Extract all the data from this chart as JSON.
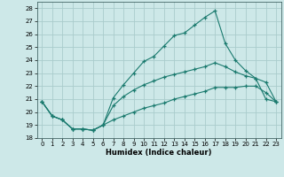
{
  "xlabel": "Humidex (Indice chaleur)",
  "xlim": [
    -0.5,
    23.5
  ],
  "ylim": [
    18,
    28.5
  ],
  "yticks": [
    18,
    19,
    20,
    21,
    22,
    23,
    24,
    25,
    26,
    27,
    28
  ],
  "xticks": [
    0,
    1,
    2,
    3,
    4,
    5,
    6,
    7,
    8,
    9,
    10,
    11,
    12,
    13,
    14,
    15,
    16,
    17,
    18,
    19,
    20,
    21,
    22,
    23
  ],
  "background_color": "#cde8e8",
  "grid_color": "#aacccc",
  "line_color": "#1a7a6e",
  "series": [
    {
      "x": [
        0,
        1,
        2,
        3,
        4,
        5,
        6,
        7,
        8,
        9,
        10,
        11,
        12,
        13,
        14,
        15,
        16,
        17,
        18,
        19,
        20,
        21,
        22,
        23
      ],
      "y": [
        20.8,
        19.7,
        19.4,
        18.7,
        18.7,
        18.6,
        19.0,
        21.1,
        22.1,
        23.0,
        23.9,
        24.3,
        25.1,
        25.9,
        26.1,
        26.7,
        27.3,
        27.8,
        25.3,
        24.0,
        23.2,
        22.6,
        21.0,
        20.8
      ]
    },
    {
      "x": [
        0,
        1,
        2,
        3,
        4,
        5,
        6,
        7,
        8,
        9,
        10,
        11,
        12,
        13,
        14,
        15,
        16,
        17,
        18,
        19,
        20,
        21,
        22,
        23
      ],
      "y": [
        20.8,
        19.7,
        19.4,
        18.7,
        18.7,
        18.6,
        19.0,
        20.5,
        21.2,
        21.7,
        22.1,
        22.4,
        22.7,
        22.9,
        23.1,
        23.3,
        23.5,
        23.8,
        23.5,
        23.1,
        22.8,
        22.6,
        22.3,
        20.8
      ]
    },
    {
      "x": [
        0,
        1,
        2,
        3,
        4,
        5,
        6,
        7,
        8,
        9,
        10,
        11,
        12,
        13,
        14,
        15,
        16,
        17,
        18,
        19,
        20,
        21,
        22,
        23
      ],
      "y": [
        20.8,
        19.7,
        19.4,
        18.7,
        18.7,
        18.6,
        19.0,
        19.4,
        19.7,
        20.0,
        20.3,
        20.5,
        20.7,
        21.0,
        21.2,
        21.4,
        21.6,
        21.9,
        21.9,
        21.9,
        22.0,
        22.0,
        21.5,
        20.8
      ]
    }
  ]
}
